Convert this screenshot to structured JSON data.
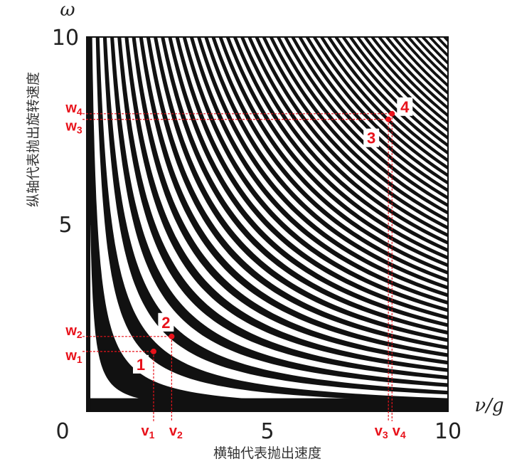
{
  "chart_data": {
    "type": "heatmap",
    "title": "",
    "xlabel": "横轴代表抛出速度",
    "ylabel": "纵轴代表抛出旋转速度",
    "x_symbol": "ν/g",
    "y_symbol": "ω",
    "xlim": [
      0,
      10
    ],
    "ylim": [
      0,
      10
    ],
    "x_ticks": [
      "0",
      "5",
      "10"
    ],
    "y_ticks": [
      "5",
      "10"
    ],
    "grid": false,
    "legend": "none",
    "colors": {
      "band_dark": "#111111",
      "band_light": "#ffffff",
      "marker": "#e8121b"
    },
    "points": [
      {
        "label": "1",
        "x": 1.85,
        "y": 1.6,
        "x_label": "v",
        "x_sub": "1",
        "y_label": "w",
        "y_sub": "1"
      },
      {
        "label": "2",
        "x": 2.35,
        "y": 2.0,
        "x_label": "v",
        "x_sub": "2",
        "y_label": "w",
        "y_sub": "2"
      },
      {
        "label": "3",
        "x": 8.35,
        "y": 7.8,
        "x_label": "v",
        "x_sub": "3",
        "y_label": "w",
        "y_sub": "3"
      },
      {
        "label": "4",
        "x": 8.45,
        "y": 7.95,
        "x_label": "v",
        "x_sub": "4",
        "y_label": "w",
        "y_sub": "4"
      }
    ]
  }
}
